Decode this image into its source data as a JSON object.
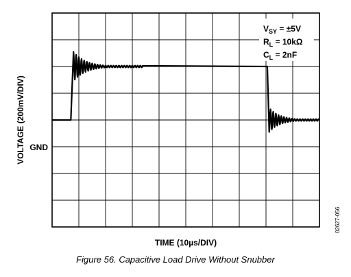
{
  "chart_data": {
    "type": "line",
    "title": "",
    "xlabel": "TIME (10µs/DIV)",
    "ylabel": "VOLTAGE (200mV/DIV)",
    "grid": true,
    "x_divisions": 10,
    "y_divisions": 8,
    "xlim": [
      0,
      10
    ],
    "ylim": [
      -4,
      4
    ],
    "y_reference_label": "GND",
    "y_reference_div": 0,
    "conditions": [
      {
        "main": "V",
        "sub": "SY",
        "rest": " = ±5V"
      },
      {
        "main": "R",
        "sub": "L",
        "rest": " = 10kΩ"
      },
      {
        "main": "C",
        "sub": "L",
        "rest": " = 2nF"
      }
    ],
    "series": [
      {
        "low_level_div": 0,
        "high_level_div": 2,
        "rise_start_div": 0.7,
        "rise_end_div": 0.8,
        "overshoot_div": 0.55,
        "rise_ringing_end_div": 3.4,
        "fall_start_div": 8.05,
        "fall_end_div": 8.12,
        "undershoot_div": 0.45,
        "fall_ringing_end_div": 10,
        "ring_period_div": 0.1
      }
    ]
  },
  "caption": "Figure 56. Capacitive Load Drive Without Snubber",
  "figure_id": "02627-056"
}
